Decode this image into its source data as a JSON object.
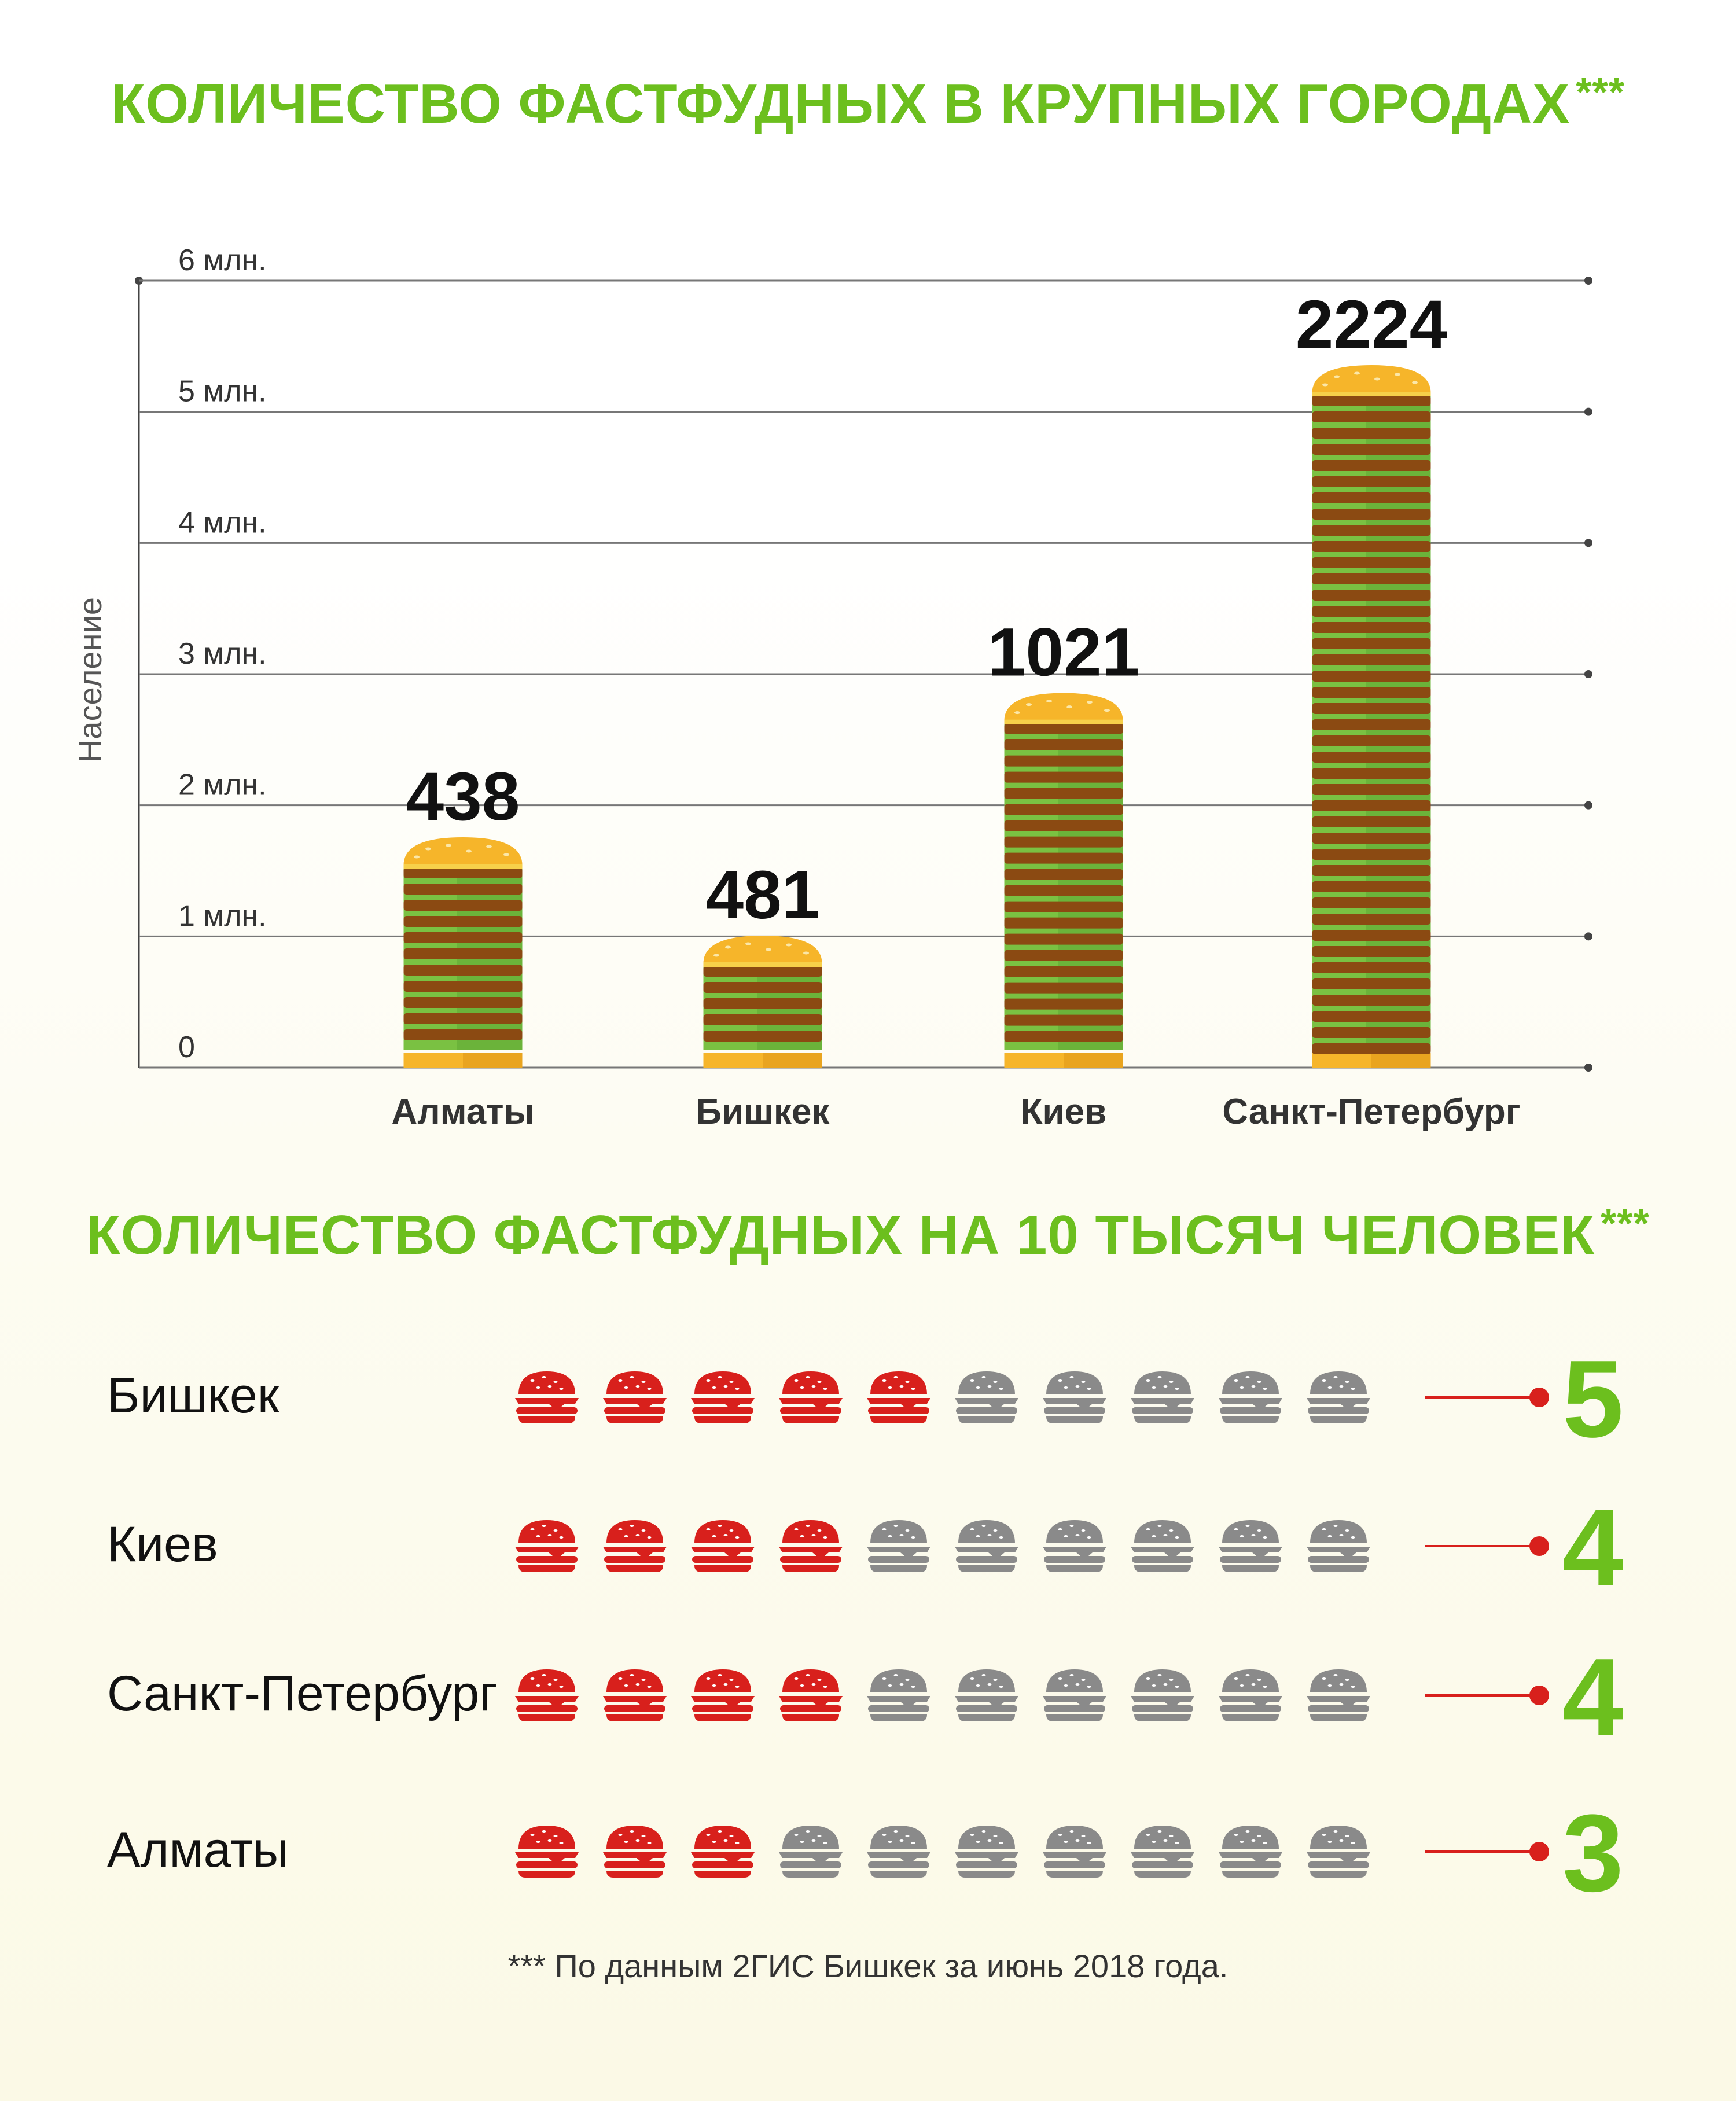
{
  "colors": {
    "accent_green": "#6cbf1e",
    "bun": "#f6b52a",
    "patty": "#8b4a12",
    "lettuce": "#7ac142",
    "icon_red": "#d8201c",
    "icon_grey": "#8a8a8a",
    "pointer_red": "#d8201c"
  },
  "header": {
    "title": "КОЛИЧЕСТВО ФАСТФУДНЫХ В КРУПНЫХ ГОРОДАХ",
    "title_mark": "***"
  },
  "section2": {
    "title": "КОЛИЧЕСТВО ФАСТФУДНЫХ НА 10 ТЫСЯЧ ЧЕЛОВЕК",
    "title_mark": "***"
  },
  "footnote": "*** По данным 2ГИС Бишкек за июнь 2018 года.",
  "chart_data": [
    {
      "type": "bar",
      "ylabel": "Население",
      "ylim": [
        0,
        6000000
      ],
      "yticks": [
        "0",
        "1 млн.",
        "2 млн.",
        "3 млн.",
        "4 млн.",
        "5 млн.",
        "6 млн."
      ],
      "grid": true,
      "categories": [
        "Алматы",
        "Бишкек",
        "Киев",
        "Санкт-Петербург"
      ],
      "population": [
        1800000,
        1050000,
        2900000,
        5400000
      ],
      "data_labels": [
        "438",
        "481",
        "1021",
        "2224"
      ]
    },
    {
      "type": "icon-array",
      "icon": "burger-icon",
      "max": 10,
      "rows": [
        {
          "label": "Бишкек",
          "value": 5,
          "value_text": "5"
        },
        {
          "label": "Киев",
          "value": 4,
          "value_text": "4"
        },
        {
          "label": "Санкт-Петербург",
          "value": 4,
          "value_text": "4"
        },
        {
          "label": "Алматы",
          "value": 3,
          "value_text": "3"
        }
      ]
    }
  ]
}
